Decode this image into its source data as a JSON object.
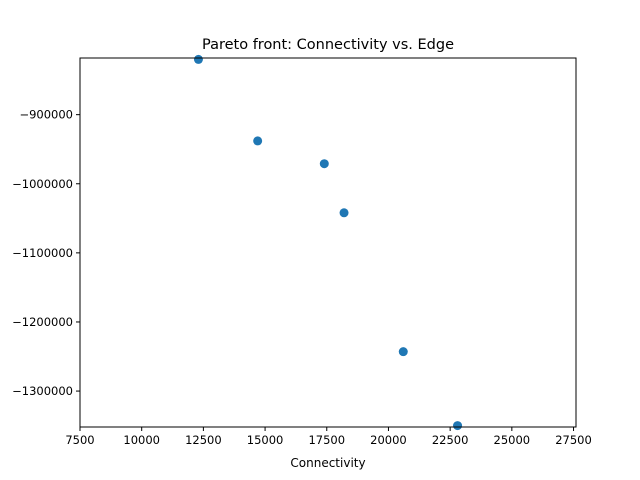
{
  "chart_data": {
    "type": "scatter",
    "title": "Pareto front: Connectivity vs. Edge",
    "xlabel": "Connectivity",
    "ylabel": "",
    "xlim": [
      7500,
      27600
    ],
    "ylim": [
      -1352000,
      -818000
    ],
    "xticks": [
      7500,
      10000,
      12500,
      15000,
      17500,
      20000,
      22500,
      25000,
      27500
    ],
    "xtick_labels": [
      "7500",
      "10000",
      "12500",
      "15000",
      "17500",
      "20000",
      "22500",
      "25000",
      "27500"
    ],
    "yticks": [
      -900000,
      -1000000,
      -1100000,
      -1200000,
      -1300000
    ],
    "ytick_labels": [
      "−900000",
      "−1000000",
      "−1100000",
      "−1200000",
      "−1300000"
    ],
    "grid": false,
    "legend": "none",
    "marker_color": "#1f77b4",
    "points": [
      {
        "x": 12300,
        "y": -820000
      },
      {
        "x": 14700,
        "y": -938000
      },
      {
        "x": 17400,
        "y": -971000
      },
      {
        "x": 18200,
        "y": -1042000
      },
      {
        "x": 20600,
        "y": -1243000
      },
      {
        "x": 22800,
        "y": -1350000
      }
    ]
  }
}
